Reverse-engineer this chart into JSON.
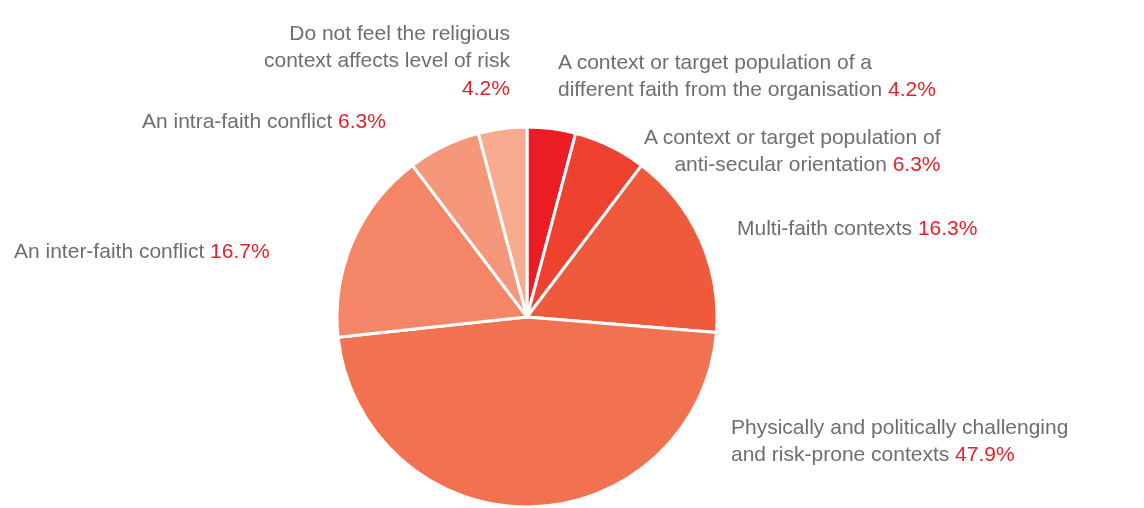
{
  "chart_data": {
    "type": "pie",
    "categories": [
      "A context or target population of a different faith from the organisation",
      "A context or target population of anti-secular orientation",
      "Multi-faith contexts",
      "Physically and politically challenging and risk-prone contexts",
      "An inter-faith conflict",
      "An intra-faith conflict",
      "Do not feel the religious context affects level of risk"
    ],
    "values": [
      4.2,
      6.3,
      16.3,
      47.9,
      16.7,
      6.3,
      4.2
    ],
    "value_labels": [
      "4.2%",
      "6.3%",
      "16.3%",
      "47.9%",
      "16.7%",
      "6.3%",
      "4.2%"
    ],
    "colors": [
      "#ec1c24",
      "#ee4130",
      "#f05a3c",
      "#f17150",
      "#f48566",
      "#f5977a",
      "#f8ab8f"
    ]
  }
}
